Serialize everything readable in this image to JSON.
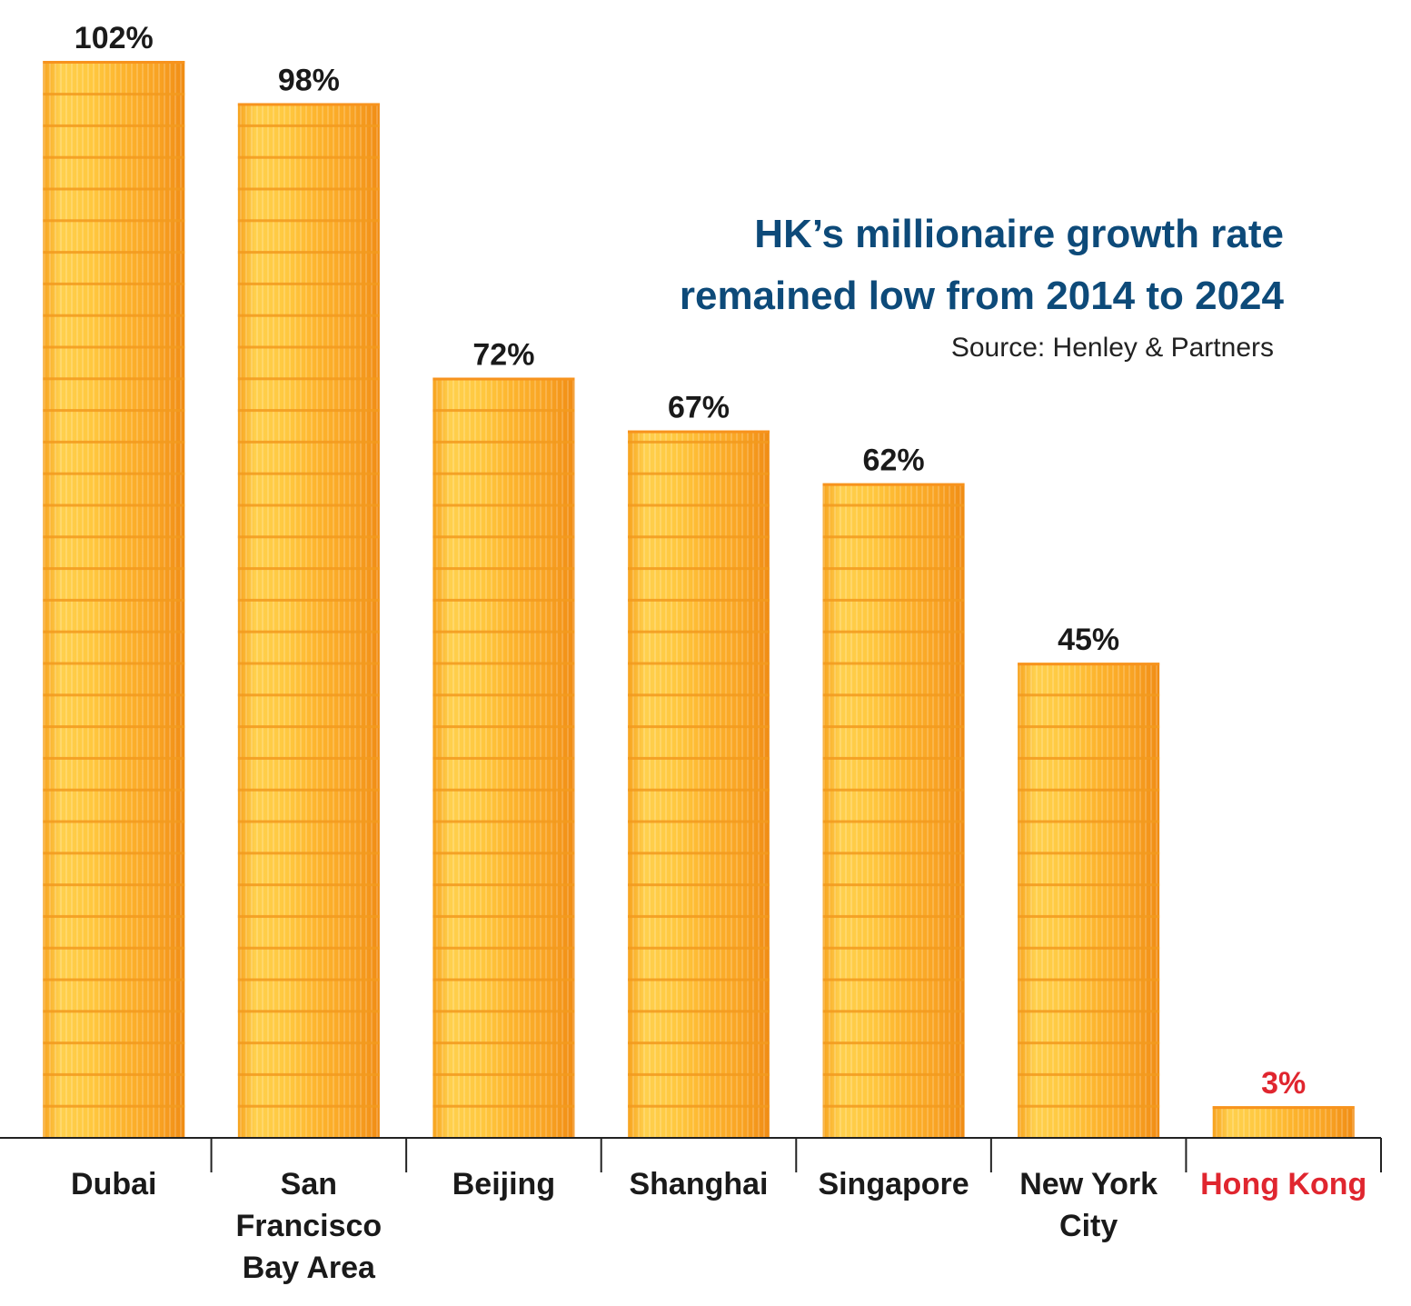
{
  "chart_data": {
    "type": "bar",
    "title": "HK’s millionaire growth rate remained low from 2014 to 2024",
    "title_lines": [
      "HK’s millionaire growth rate",
      "remained low from 2014 to 2024"
    ],
    "source": "Source: Henley & Partners",
    "categories": [
      "Dubai",
      "San Francisco Bay Area",
      "Beijing",
      "Shanghai",
      "Singapore",
      "New York City",
      "Hong Kong"
    ],
    "category_lines": [
      [
        "Dubai"
      ],
      [
        "San",
        "Francisco",
        "Bay Area"
      ],
      [
        "Beijing"
      ],
      [
        "Shanghai"
      ],
      [
        "Singapore"
      ],
      [
        "New York",
        "City"
      ],
      [
        "Hong Kong"
      ]
    ],
    "values": [
      102,
      98,
      72,
      67,
      62,
      45,
      3
    ],
    "value_labels": [
      "102%",
      "98%",
      "72%",
      "67%",
      "62%",
      "45%",
      "3%"
    ],
    "highlight": "Hong Kong",
    "ylim": [
      0,
      102
    ],
    "xlabel": "",
    "ylabel": "",
    "colors": {
      "coin_light": "#ffd04d",
      "coin_mid": "#ffc13b",
      "coin_dark": "#f7931e",
      "coin_rim": "#f29a1f",
      "title": "#0d4a79",
      "highlight": "#e0262f",
      "axis": "#222222"
    }
  }
}
